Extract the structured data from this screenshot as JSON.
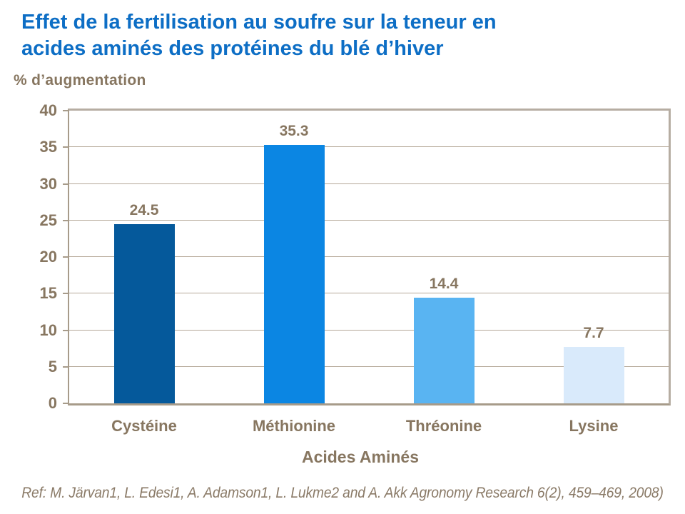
{
  "title_line1": "Effet de la fertilisation au soufre sur la teneur en",
  "title_line2": "acides aminés des protéines du blé d’hiver",
  "y_axis_title": "% d’augmentation",
  "chart_data": {
    "type": "bar",
    "title": "Effet de la fertilisation au soufre sur la teneur en acides aminés des protéines du blé d’hiver",
    "categories": [
      "Cystéine",
      "Méthionine",
      "Thréonine",
      "Lysine"
    ],
    "values": [
      24.5,
      35.3,
      14.4,
      7.7
    ],
    "xlabel": "Acides Aminés",
    "ylabel": "% d’augmentation",
    "ylim": [
      0,
      40
    ],
    "ytick_step": 5,
    "grid": true,
    "legend": false,
    "bar_colors": [
      "#05599b",
      "#0b86e3",
      "#59b4f2",
      "#d9eafb"
    ]
  },
  "reference": "Ref: M. Järvan1, L. Edesi1, A. Adamson1, L. Lukme2 and A. Akk Agronomy Research 6(2), 459–469, 2008)",
  "colors": {
    "title_blue": "#0d6ec5",
    "axis_text_brown": "#877660",
    "gridline": "#b6a999",
    "plot_border": "#b6ada2",
    "axis_line": "#a79b8a"
  }
}
